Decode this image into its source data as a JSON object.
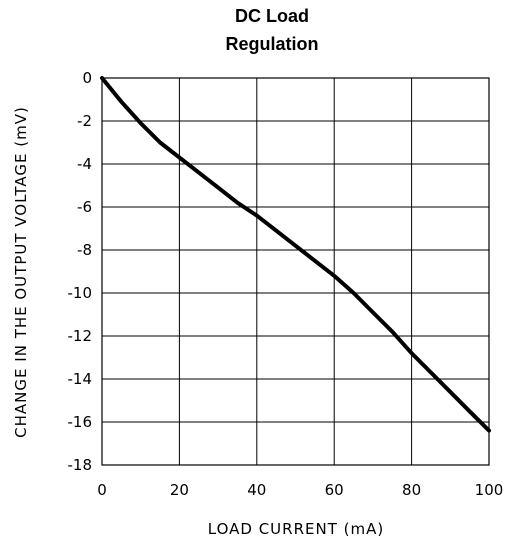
{
  "chart_data": {
    "type": "line",
    "title_lines": [
      "DC Load",
      "Regulation"
    ],
    "xlabel": "LOAD CURRENT (mA)",
    "ylabel": "CHANGE IN THE OUTPUT VOLTAGE (mV)",
    "xlim": [
      0,
      100
    ],
    "ylim": [
      -18,
      0
    ],
    "xticks": [
      0,
      20,
      40,
      60,
      80,
      100
    ],
    "yticks": [
      0,
      -2,
      -4,
      -6,
      -8,
      -10,
      -12,
      -14,
      -16,
      -18
    ],
    "grid": true,
    "series": [
      {
        "x": [
          0,
          5,
          10,
          15,
          20,
          25,
          30,
          35,
          40,
          45,
          50,
          55,
          60,
          65,
          70,
          75,
          80,
          85,
          90,
          95,
          100
        ],
        "values": [
          0,
          -1.1,
          -2.1,
          -3.0,
          -3.7,
          -4.4,
          -5.1,
          -5.8,
          -6.4,
          -7.1,
          -7.8,
          -8.5,
          -9.2,
          -10.0,
          -10.9,
          -11.8,
          -12.8,
          -13.7,
          -14.6,
          -15.5,
          -16.4
        ]
      }
    ]
  }
}
